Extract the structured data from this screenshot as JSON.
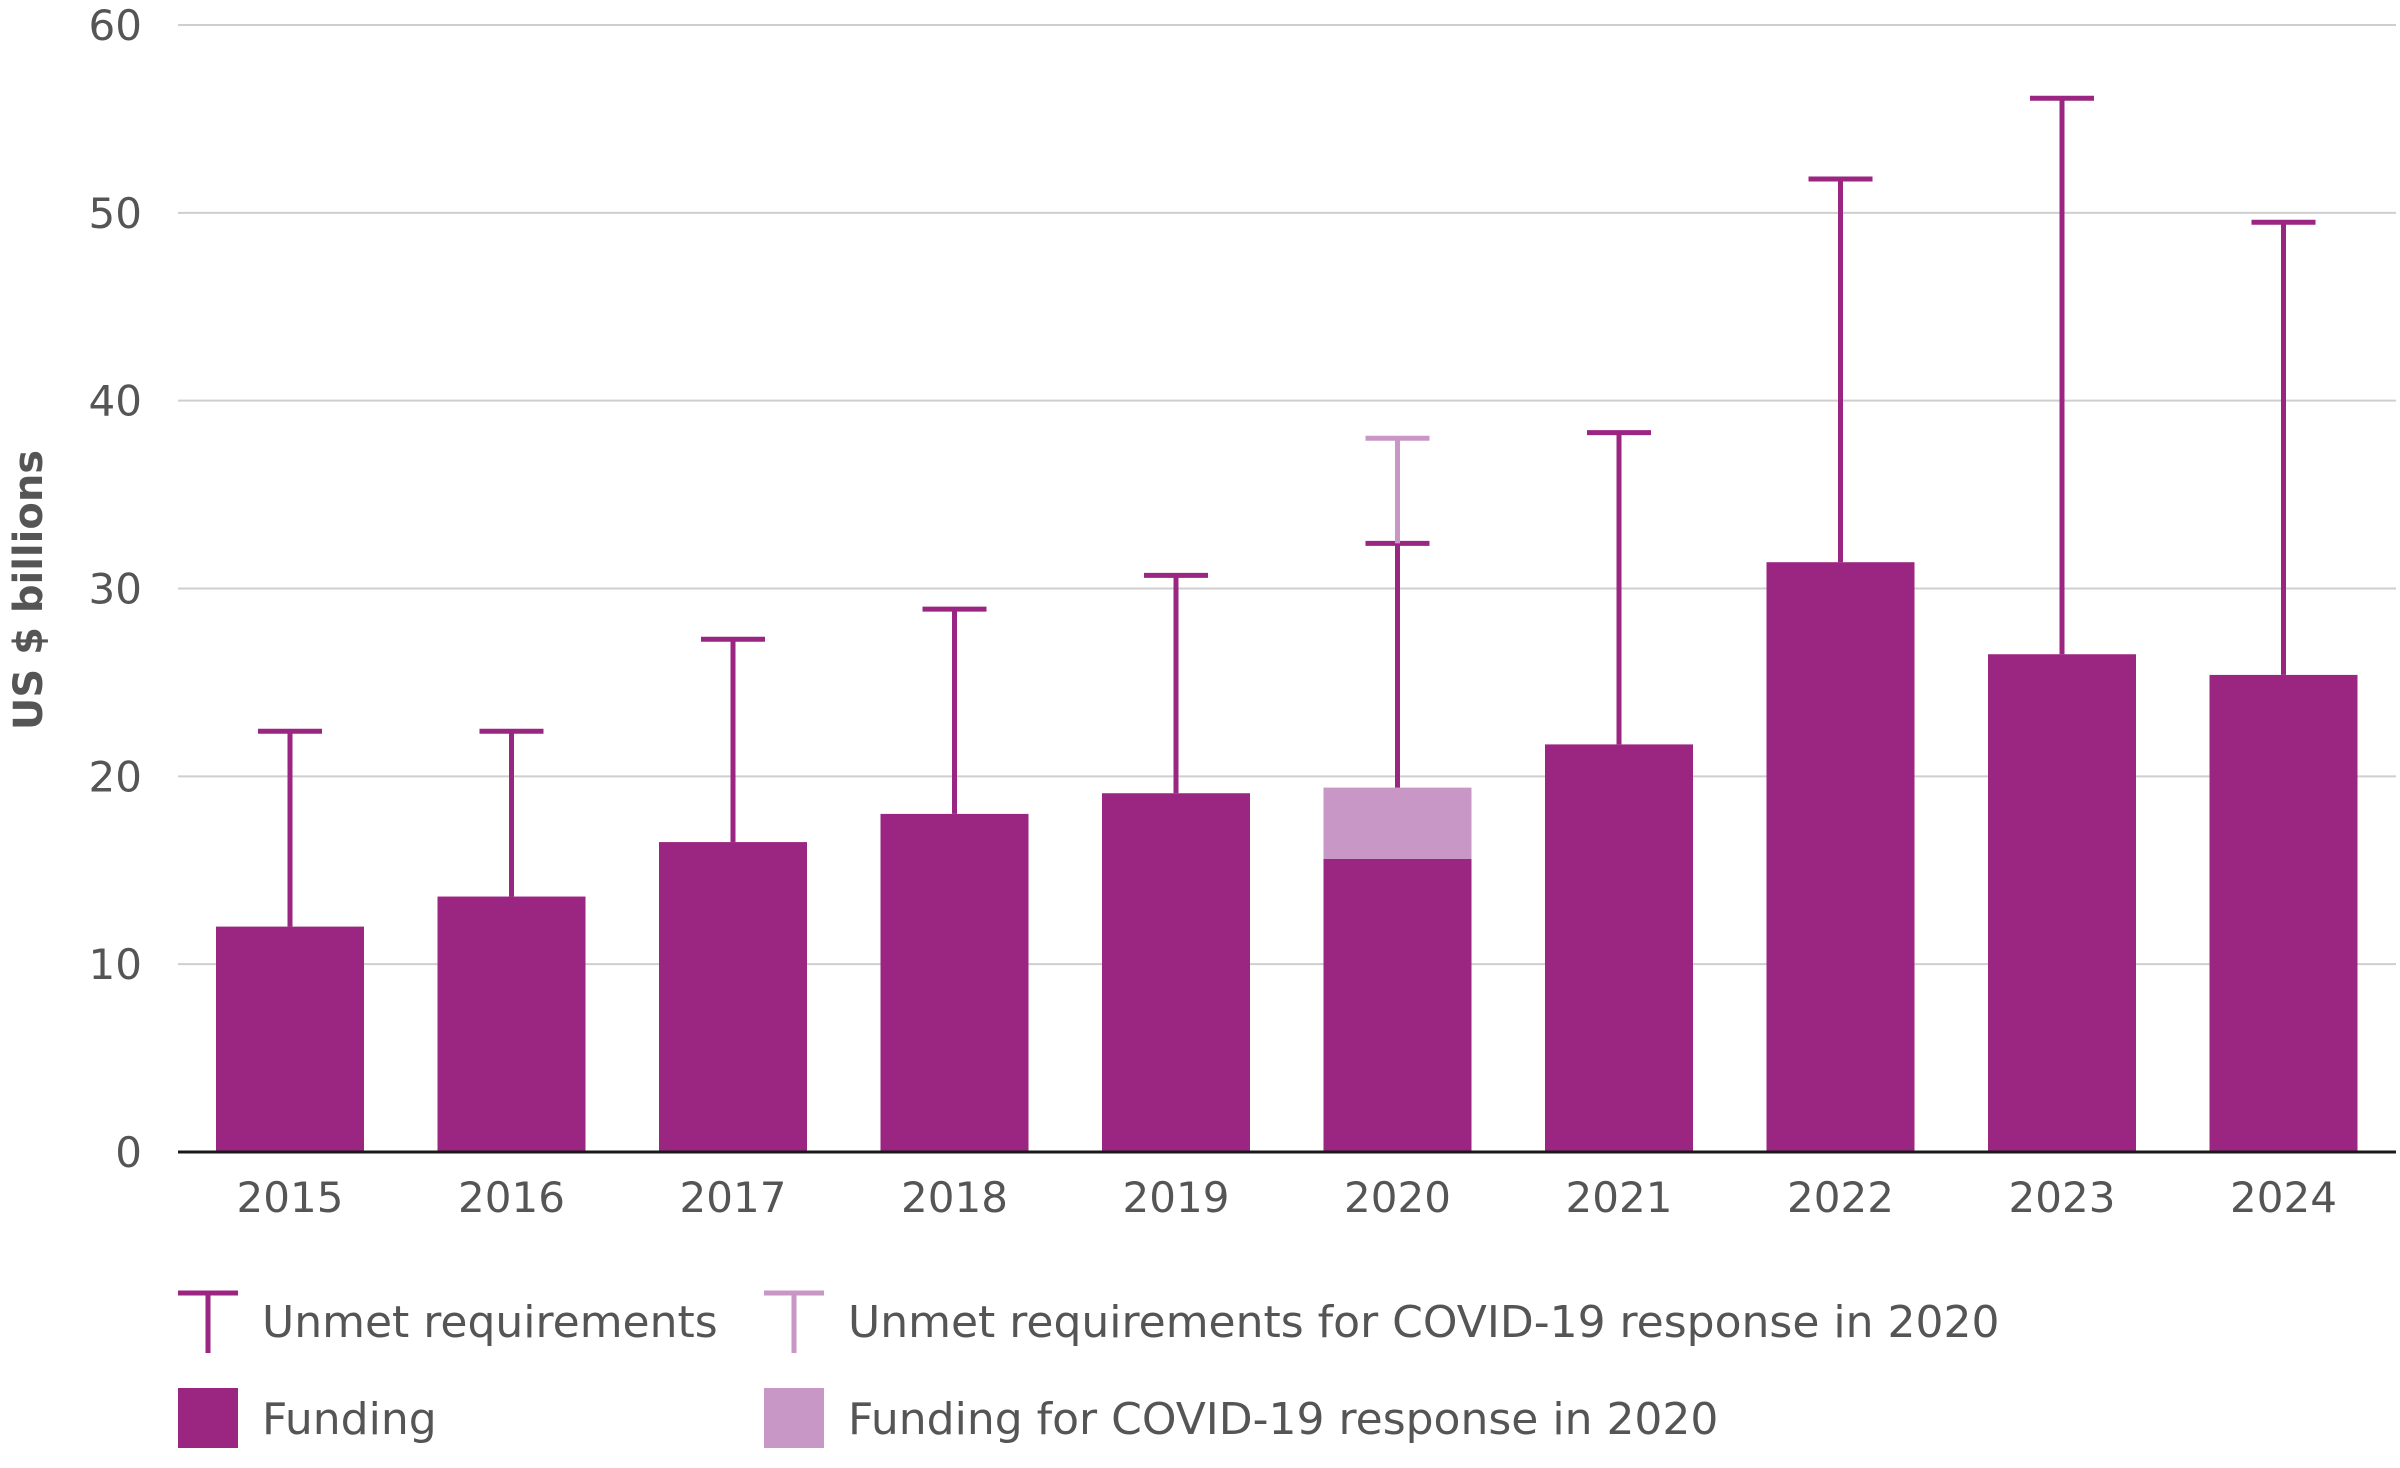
{
  "colors": {
    "funding": "#9B2682",
    "covid": "#C897C6",
    "grid": "#cfcfcf",
    "text": "#555555"
  },
  "chart_data": {
    "type": "bar",
    "ylabel": "US $ billions",
    "ylim": [
      0,
      60
    ],
    "yticks": [
      0,
      10,
      20,
      30,
      40,
      50,
      60
    ],
    "grid": true,
    "legend_position": "bottom",
    "categories": [
      "2015",
      "2016",
      "2017",
      "2018",
      "2019",
      "2020",
      "2021",
      "2022",
      "2023",
      "2024"
    ],
    "series": [
      {
        "name": "Funding",
        "values": [
          12.0,
          13.6,
          16.5,
          18.0,
          19.1,
          15.6,
          21.7,
          31.4,
          26.5,
          25.4
        ]
      },
      {
        "name": "Funding for COVID-19 response in 2020",
        "values": [
          null,
          null,
          null,
          null,
          null,
          3.8,
          null,
          null,
          null,
          null
        ]
      }
    ],
    "requirements": [
      {
        "name": "Unmet requirements",
        "values": [
          22.4,
          22.4,
          27.3,
          28.9,
          30.7,
          32.4,
          38.3,
          51.8,
          56.1,
          49.5
        ]
      },
      {
        "name": "Unmet requirements for COVID-19 response in 2020",
        "values": [
          null,
          null,
          null,
          null,
          null,
          38.0,
          null,
          null,
          null,
          null
        ]
      }
    ],
    "legend": [
      {
        "label": "Unmet requirements",
        "symbol": "errorbar",
        "color": "#9B2682"
      },
      {
        "label": "Unmet requirements for COVID-19 response in 2020",
        "symbol": "errorbar",
        "color": "#C897C6"
      },
      {
        "label": "Funding",
        "symbol": "square",
        "color": "#9B2682"
      },
      {
        "label": "Funding for COVID-19 response in 2020",
        "symbol": "square",
        "color": "#C897C6"
      }
    ]
  }
}
